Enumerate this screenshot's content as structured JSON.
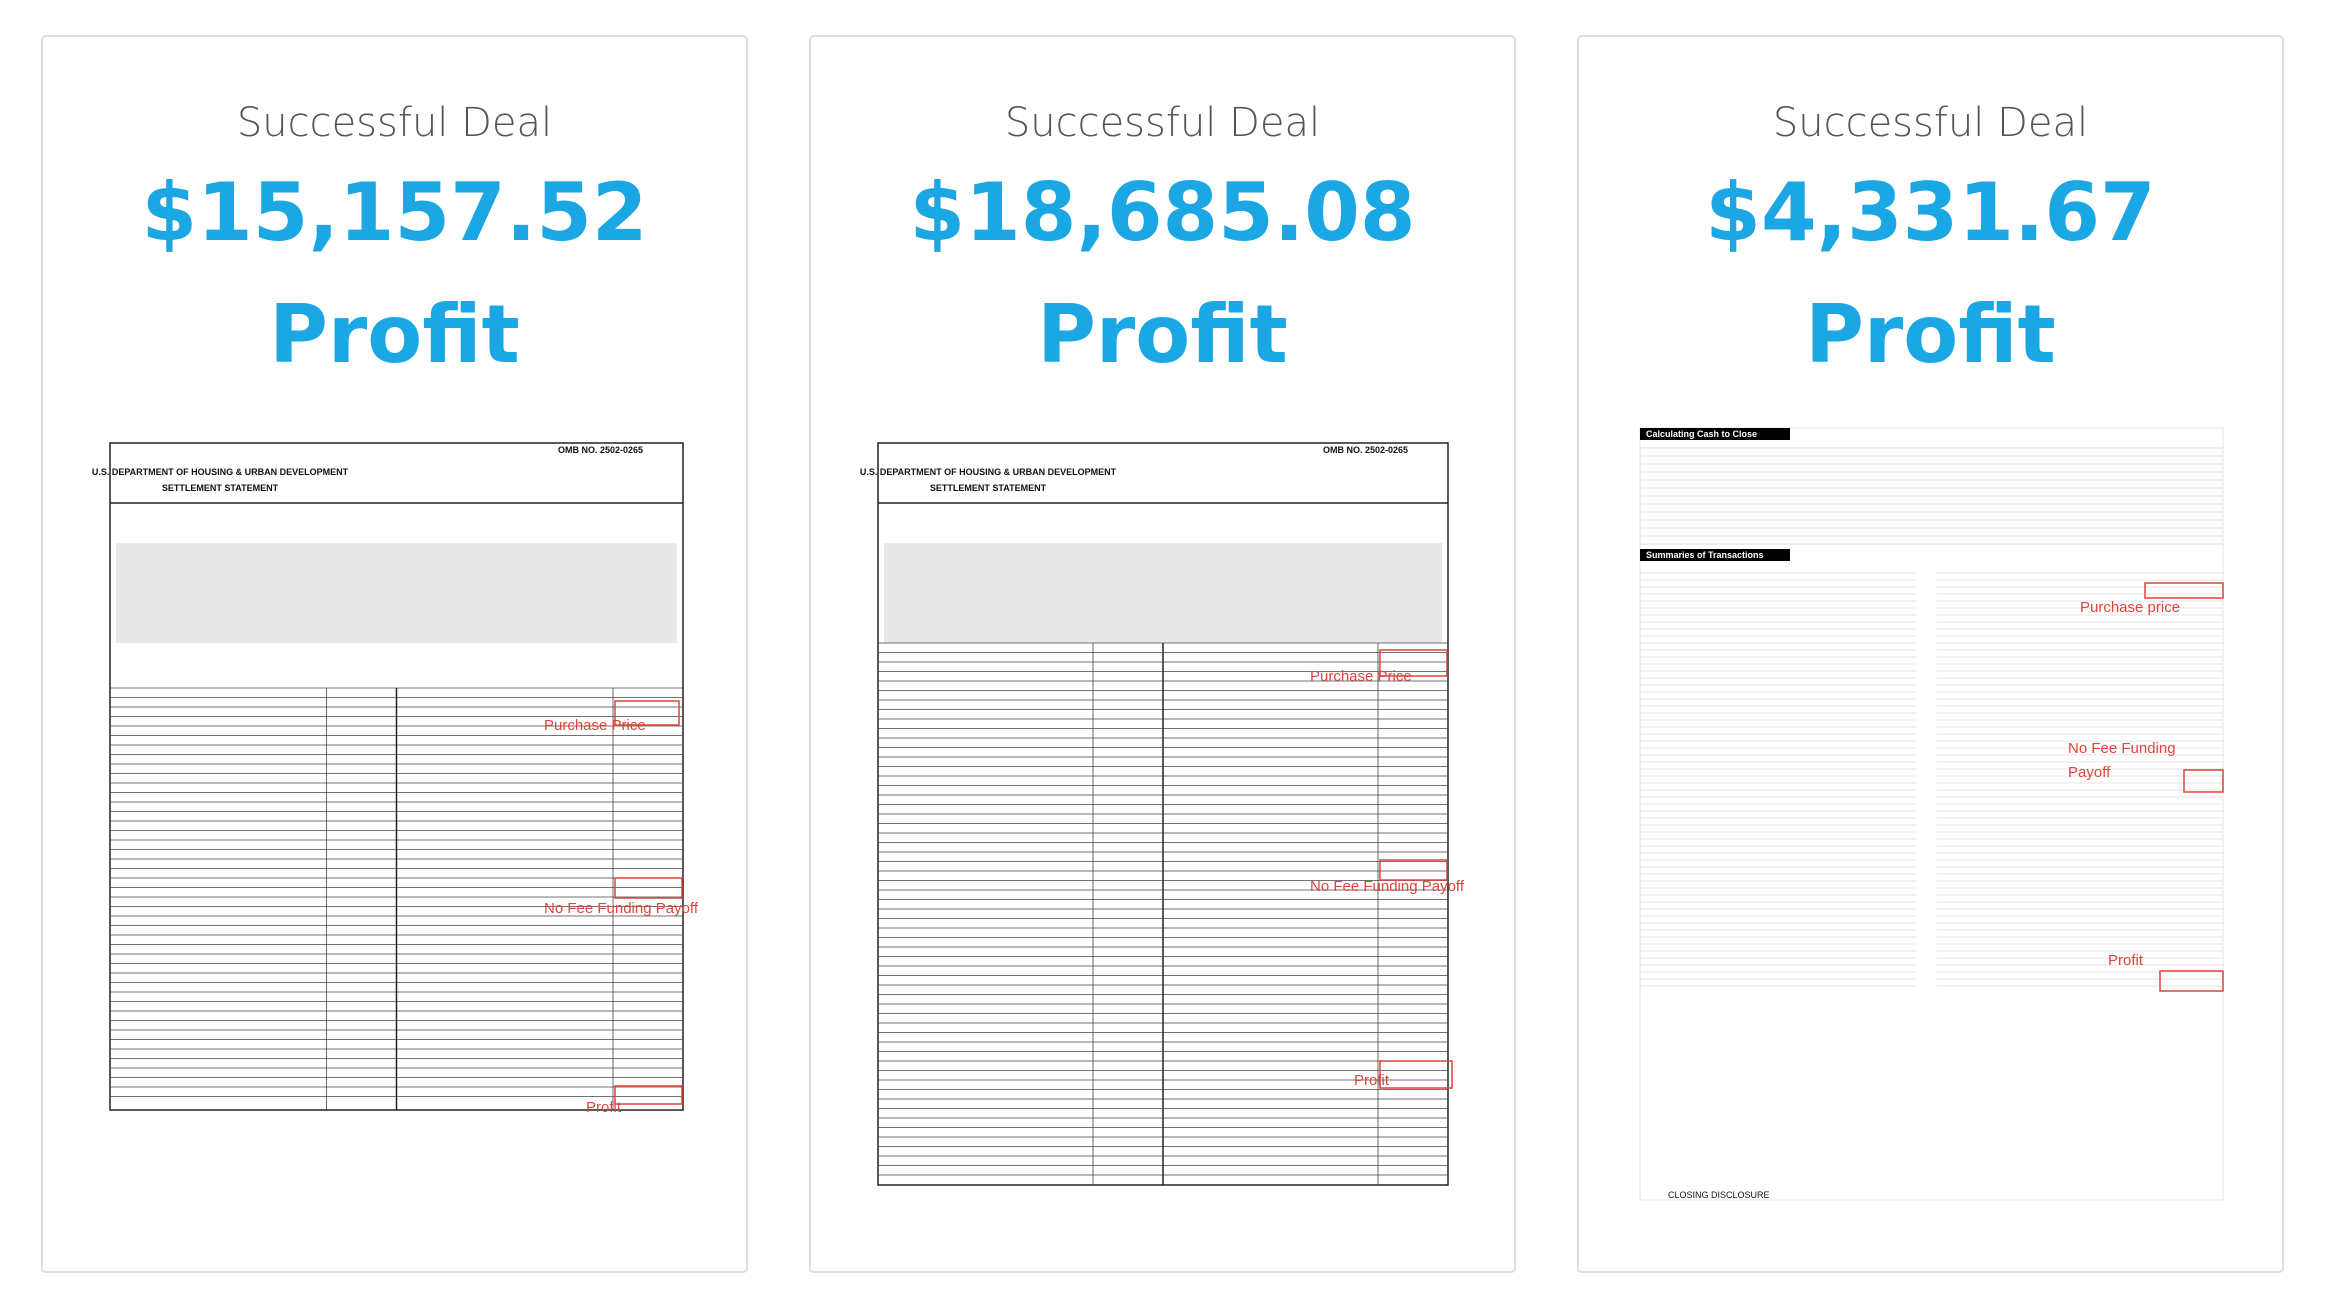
{
  "cards": [
    {
      "label": "Successful Deal",
      "amount": "$15,157.52",
      "suffix": "Profit",
      "document": {
        "agency": "U.S. DEPARTMENT OF HOUSING & URBAN DEVELOPMENT",
        "title": "SETTLEMENT STATEMENT",
        "omb": "OMB NO. 2502-0265",
        "annotations": [
          "Purchase Price",
          "No Fee Funding Payoff",
          "Profit"
        ]
      }
    },
    {
      "label": "Successful Deal",
      "amount": "$18,685.08",
      "suffix": "Profit",
      "document": {
        "agency": "U.S. DEPARTMENT OF HOUSING & URBAN DEVELOPMENT",
        "title": "SETTLEMENT STATEMENT",
        "omb": "OMB NO. 2502-0265",
        "annotations": [
          "Purchase Price",
          "No Fee Funding Payoff",
          "Profit"
        ]
      }
    },
    {
      "label": "Successful Deal",
      "amount": "$4,331.67",
      "suffix": "Profit",
      "document": {
        "agency": "Calculating Cash to Close",
        "title": "Summaries of Transactions",
        "omb": "CLOSING DISCLOSURE",
        "annotations": [
          "Purchase price",
          "No Fee Funding",
          "Payoff",
          "Profit"
        ]
      }
    }
  ]
}
